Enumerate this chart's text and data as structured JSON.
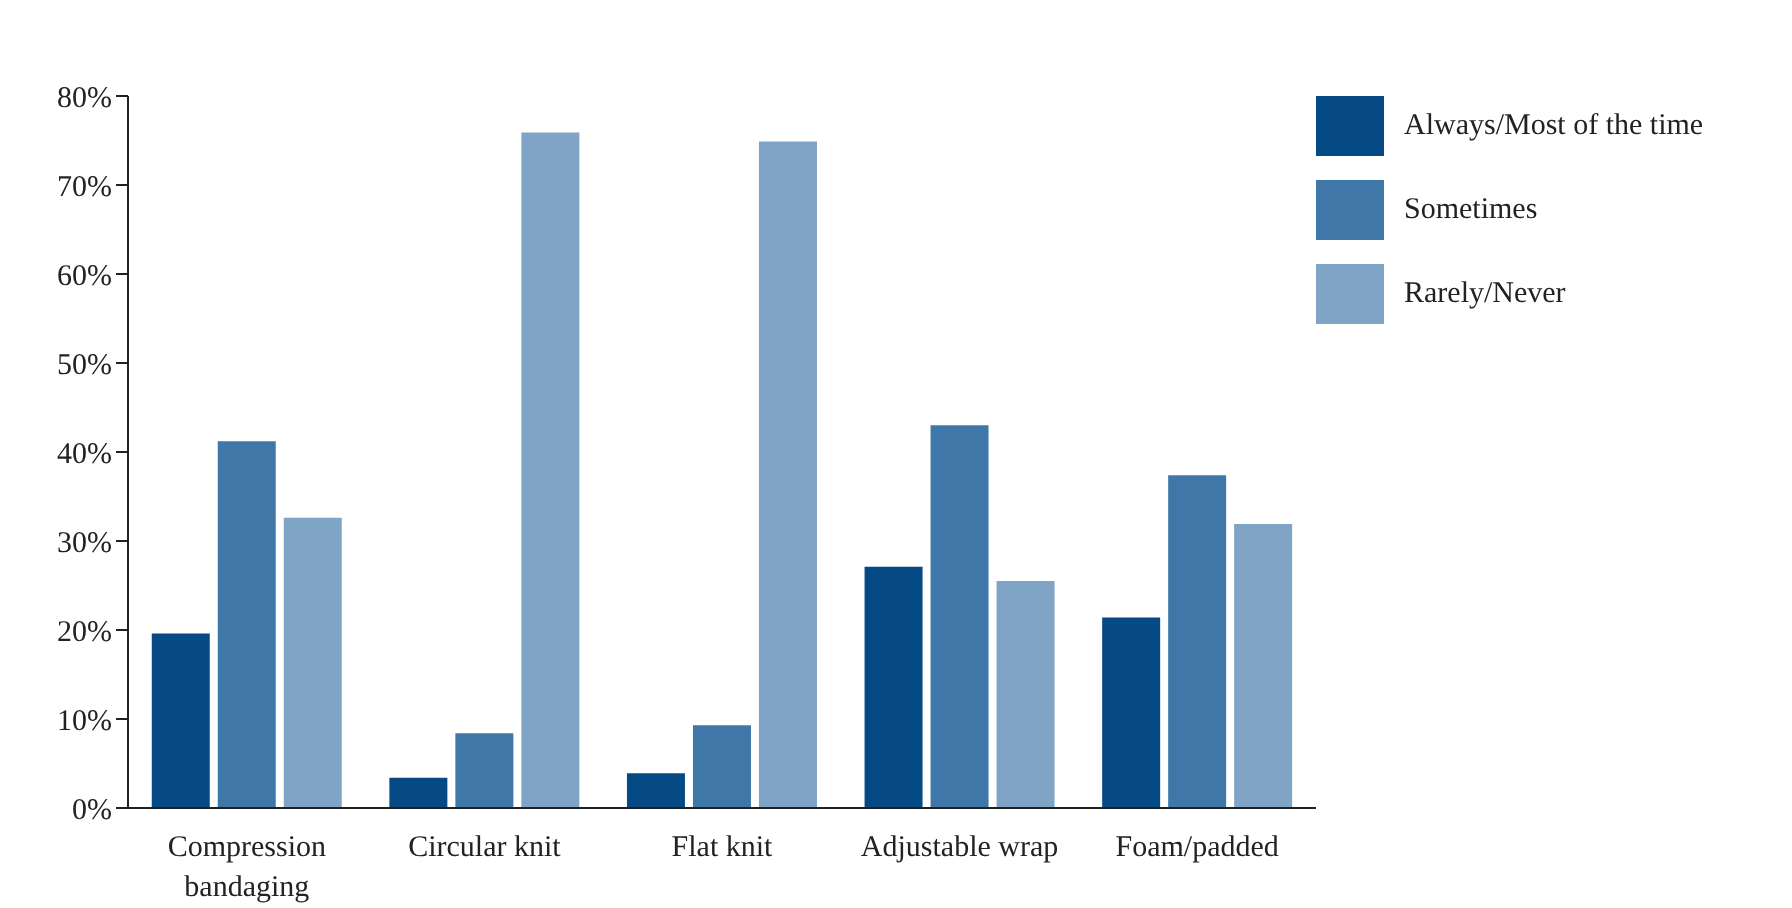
{
  "chart_data": {
    "type": "bar",
    "categories": [
      "Compression bandaging",
      "Circular knit",
      "Flat knit",
      "Adjustable wrap",
      "Foam/padded"
    ],
    "series": [
      {
        "name": "Always/Most of the time",
        "color": "#054a85",
        "values": [
          19.6,
          3.4,
          3.9,
          27.1,
          21.4
        ]
      },
      {
        "name": "Sometimes",
        "color": "#3f77a8",
        "values": [
          41.2,
          8.4,
          9.3,
          43.0,
          37.4
        ]
      },
      {
        "name": "Rarely/Never",
        "color": "#7fa4c6",
        "values": [
          32.6,
          75.9,
          74.9,
          25.5,
          31.9
        ]
      }
    ],
    "ylim": [
      0,
      80
    ],
    "yticks": [
      {
        "value": 0,
        "label": "0%"
      },
      {
        "value": 10,
        "label": "10%"
      },
      {
        "value": 20,
        "label": "20%"
      },
      {
        "value": 30,
        "label": "30%"
      },
      {
        "value": 40,
        "label": "40%"
      },
      {
        "value": 50,
        "label": "50%"
      },
      {
        "value": 60,
        "label": "60%"
      },
      {
        "value": 70,
        "label": "70%"
      },
      {
        "value": 80,
        "label": "80%"
      }
    ],
    "grid": false,
    "legend": "top right"
  }
}
